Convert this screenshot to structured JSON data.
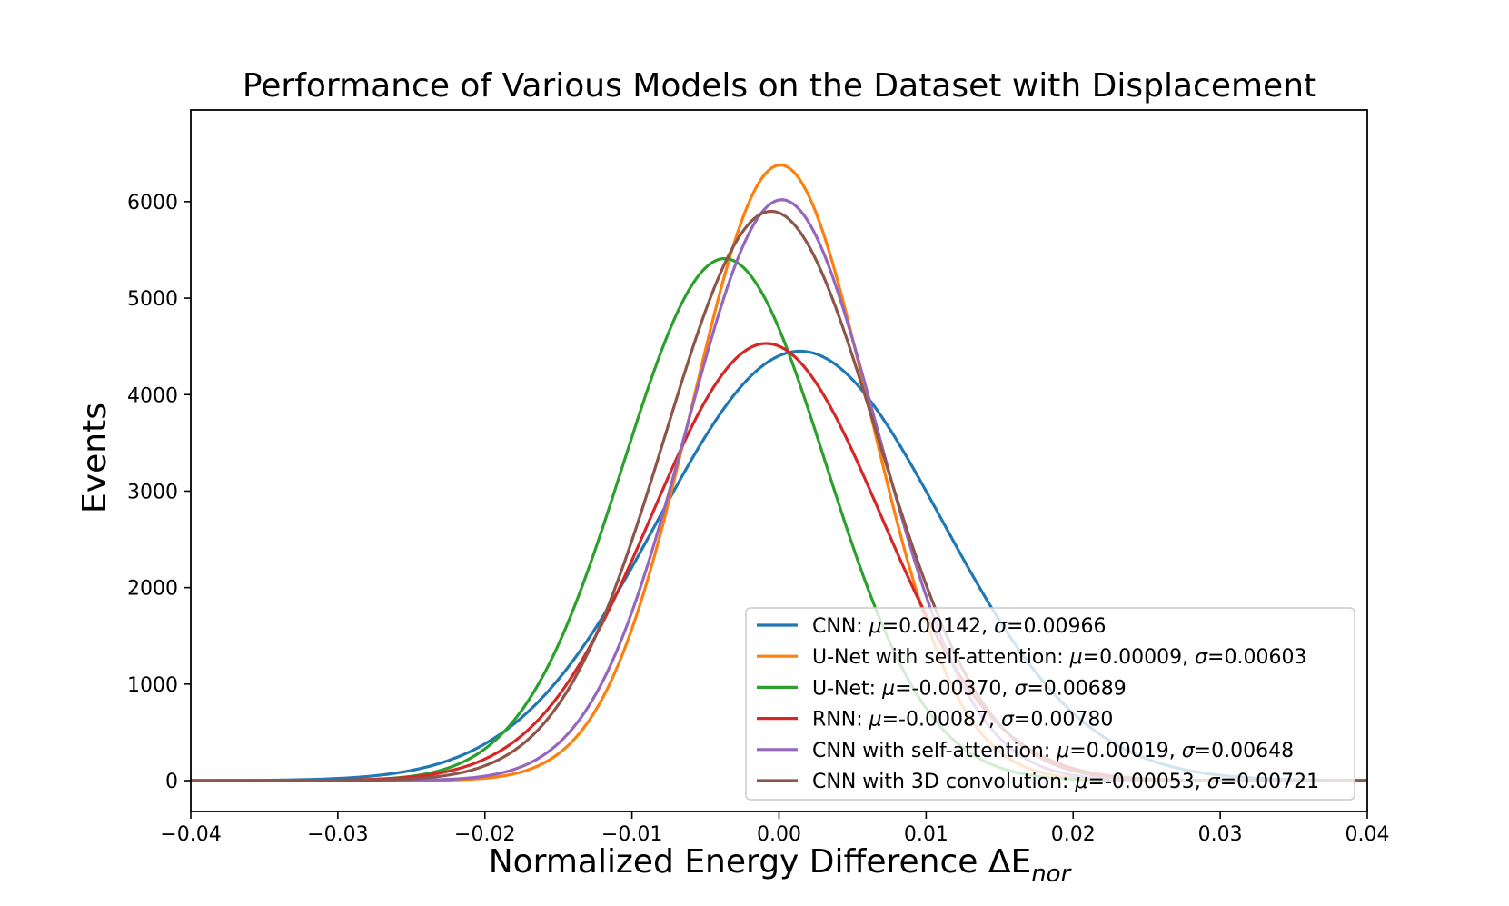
{
  "chart_data": {
    "type": "line",
    "title": "Performance of Various Models on the Dataset with Displacement",
    "xlabel": "Normalized Energy Difference ΔE",
    "xlabel_sub": "nor",
    "ylabel": "Events",
    "xlim": [
      -0.04,
      0.04
    ],
    "ylim": [
      -320,
      6950
    ],
    "xticks": [
      -0.04,
      -0.03,
      -0.02,
      -0.01,
      0.0,
      0.01,
      0.02,
      0.03,
      0.04
    ],
    "xtick_labels": [
      "−0.04",
      "−0.03",
      "−0.02",
      "−0.01",
      "0.00",
      "0.01",
      "0.02",
      "0.03",
      "0.04"
    ],
    "yticks": [
      0,
      1000,
      2000,
      3000,
      4000,
      5000,
      6000
    ],
    "ytick_labels": [
      "0",
      "1000",
      "2000",
      "3000",
      "4000",
      "5000",
      "6000"
    ],
    "grid": false,
    "legend_position": "lower-right",
    "series": [
      {
        "name": "CNN: μ=0.00142, σ=0.00966",
        "label": "CNN: ",
        "mu_text": "0.00142",
        "sigma_text": "0.00966",
        "mu": 0.00142,
        "sigma": 0.00966,
        "peak": 4450,
        "color": "#1f77b4"
      },
      {
        "name": "U-Net with self-attention: μ=0.00009, σ=0.00603",
        "label": "U-Net with self-attention: ",
        "mu_text": "0.00009",
        "sigma_text": "0.00603",
        "mu": 9e-05,
        "sigma": 0.00603,
        "peak": 6380,
        "color": "#ff7f0e"
      },
      {
        "name": "U-Net: μ=-0.00370, σ=0.00689",
        "label": "U-Net: ",
        "mu_text": "-0.00370",
        "sigma_text": "0.00689",
        "mu": -0.0037,
        "sigma": 0.00689,
        "peak": 5410,
        "color": "#2ca02c"
      },
      {
        "name": "RNN: μ=-0.00087, σ=0.00780",
        "label": "RNN: ",
        "mu_text": "-0.00087",
        "sigma_text": "0.00780",
        "mu": -0.00087,
        "sigma": 0.0078,
        "peak": 4530,
        "color": "#d62728"
      },
      {
        "name": "CNN with self-attention: μ=0.00019, σ=0.00648",
        "label": "CNN with self-attention: ",
        "mu_text": "0.00019",
        "sigma_text": "0.00648",
        "mu": 0.00019,
        "sigma": 0.00648,
        "peak": 6020,
        "color": "#9467bd"
      },
      {
        "name": "CNN with 3D convolution: μ=-0.00053, σ=0.00721",
        "label": "CNN with 3D convolution: ",
        "mu_text": "-0.00053",
        "sigma_text": "0.00721",
        "mu": -0.00053,
        "sigma": 0.00721,
        "peak": 5900,
        "color": "#8c564b"
      }
    ],
    "legend_symbols": {
      "mu": "μ",
      "sigma": "σ"
    }
  }
}
